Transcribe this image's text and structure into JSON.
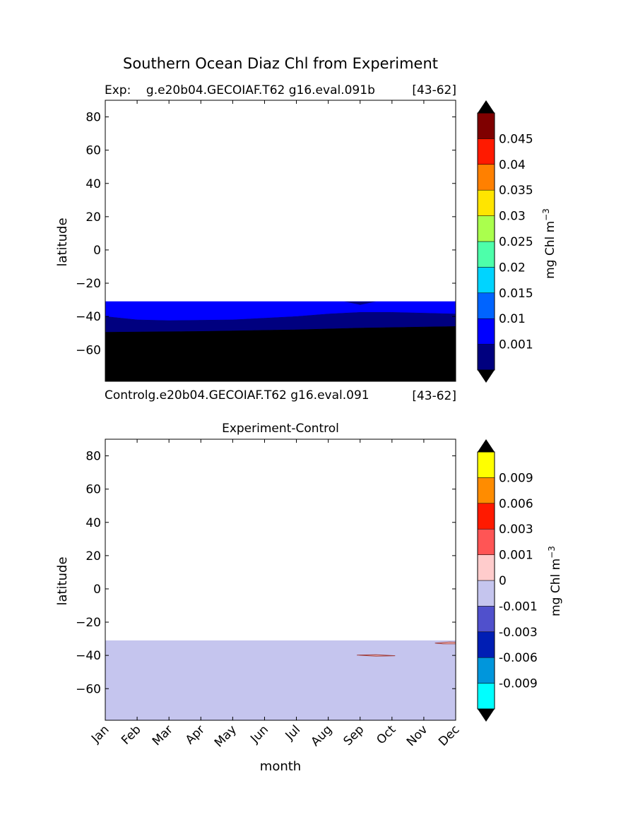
{
  "figure": {
    "title": "Southern Ocean Diaz Chl from Experiment"
  },
  "chart_data": [
    {
      "type": "heatmap",
      "panel": "experiment",
      "left_label": "Exp:    g.e20b04.GECOIAF.T62 g16.eval.091b",
      "right_label": "[43-62]",
      "bottom_left_label": "Controlg.e20b04.GECOIAF.T62 g16.eval.091",
      "bottom_right_label": "[43-62]",
      "ylabel": "latitude",
      "ylim": [
        -79,
        90
      ],
      "yticks": [
        "80",
        "60",
        "40",
        "20",
        "0",
        "−20",
        "−40",
        "−60"
      ],
      "ytick_values": [
        80,
        60,
        40,
        20,
        0,
        -20,
        -40,
        -60
      ],
      "xlim": [
        1,
        12
      ],
      "data_top_lat": -31,
      "data_bottom_lat": -79,
      "bands": [
        {
          "color": "#0000ff",
          "top": [
            [
              1,
              -31
            ],
            [
              12,
              -31
            ]
          ],
          "bottom": [
            [
              1,
              -40
            ],
            [
              2,
              -42
            ],
            [
              3,
              -42.5
            ],
            [
              5,
              -42
            ],
            [
              7,
              -40
            ],
            [
              8,
              -38.5
            ],
            [
              9,
              -37.5
            ],
            [
              10,
              -37.5
            ],
            [
              11,
              -38
            ],
            [
              12,
              -38.5
            ]
          ]
        },
        {
          "color": "#00007f",
          "top": [
            [
              1,
              -40
            ],
            [
              2,
              -42
            ],
            [
              3,
              -42.5
            ],
            [
              5,
              -42
            ],
            [
              7,
              -40
            ],
            [
              8,
              -38.5
            ],
            [
              9,
              -37.5
            ],
            [
              10,
              -37.5
            ],
            [
              11,
              -38
            ],
            [
              12,
              -38.5
            ]
          ],
          "bottom": [
            [
              1,
              -49.5
            ],
            [
              4,
              -49
            ],
            [
              7,
              -48
            ],
            [
              9,
              -47
            ],
            [
              12,
              -46
            ]
          ]
        },
        {
          "color": "#000000",
          "top": [
            [
              1,
              -49.5
            ],
            [
              4,
              -49
            ],
            [
              7,
              -48
            ],
            [
              9,
              -47
            ],
            [
              12,
              -46
            ]
          ],
          "bottom": [
            [
              1,
              -79
            ],
            [
              12,
              -79
            ]
          ]
        }
      ],
      "features": [
        {
          "color": "#00007f",
          "points": [
            [
              8.5,
              -31
            ],
            [
              9,
              -33
            ],
            [
              9.5,
              -31
            ]
          ]
        }
      ],
      "colorbar": {
        "label": "mg Chl m",
        "label_sup": "−3",
        "colors": [
          "#00007f",
          "#0000ff",
          "#0064ff",
          "#00d4ff",
          "#4dffaa",
          "#aaff4d",
          "#ffe500",
          "#ff8000",
          "#ff1a00",
          "#7f0000"
        ],
        "under_color": "#000000",
        "over_color": "#000000",
        "ticks": [
          "0.001",
          "0.01",
          "0.015",
          "0.02",
          "0.025",
          "0.03",
          "0.035",
          "0.04",
          "0.045"
        ]
      }
    },
    {
      "type": "heatmap",
      "panel": "difference",
      "title": "Experiment-Control",
      "xlabel": "month",
      "ylabel": "latitude",
      "categories": [
        "Jan",
        "Feb",
        "Mar",
        "Apr",
        "May",
        "Jun",
        "Jul",
        "Aug",
        "Sep",
        "Oct",
        "Nov",
        "Dec"
      ],
      "ylim": [
        -79,
        90
      ],
      "yticks": [
        "80",
        "60",
        "40",
        "20",
        "0",
        "−20",
        "−40",
        "−60"
      ],
      "ytick_values": [
        80,
        60,
        40,
        20,
        0,
        -20,
        -40,
        -60
      ],
      "xlim": [
        1,
        12
      ],
      "fill": {
        "color": "#c5c5ee",
        "top_lat": -31,
        "bottom_lat": -79
      },
      "features": [
        {
          "color": "#ffcccc",
          "stroke": "#a04040",
          "points": [
            [
              8.9,
              -39.8
            ],
            [
              9.5,
              -39.6
            ],
            [
              10.1,
              -40.2
            ],
            [
              9.5,
              -40.5
            ]
          ]
        },
        {
          "color": "#ffcccc",
          "stroke": "#a04040",
          "points": [
            [
              11.35,
              -32.6
            ],
            [
              11.8,
              -32
            ],
            [
              12,
              -32.1
            ],
            [
              12,
              -33
            ],
            [
              11.6,
              -33
            ]
          ]
        }
      ],
      "colorbar": {
        "label": "mg Chl m",
        "label_sup": "−3",
        "colors": [
          "#00ffff",
          "#0096dc",
          "#001eb4",
          "#5050cc",
          "#c5c5ee",
          "#ffcccc",
          "#ff5555",
          "#ff1a00",
          "#ff8c00",
          "#ffff00"
        ],
        "under_color": "#000000",
        "over_color": "#000000",
        "ticks": [
          "-0.009",
          "-0.006",
          "-0.003",
          "-0.001",
          "0",
          "0.001",
          "0.003",
          "0.006",
          "0.009"
        ]
      }
    }
  ]
}
